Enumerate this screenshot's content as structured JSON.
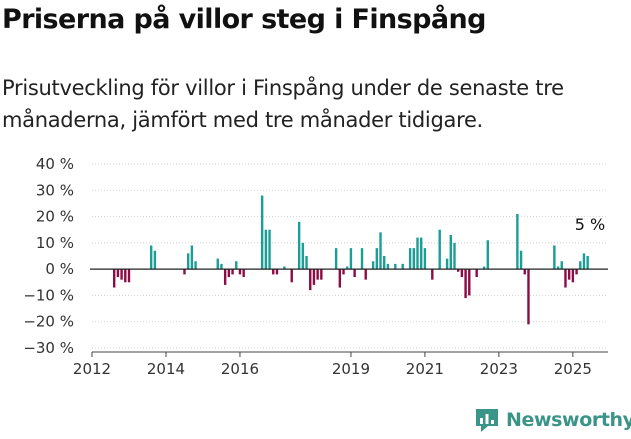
{
  "title": "Priserna på villor steg i Finspång",
  "subtitle": "Prisutveckling för villor i Finspång under de senaste tre månaderna, jämfört med tre månader tidigare.",
  "logo": {
    "text": "Newsworthy",
    "icon": "newsworthy-chart-logo-icon",
    "color": "#3a9487"
  },
  "colors": {
    "positive": "#1a9e96",
    "negative": "#8c0c46",
    "axis": "#444444",
    "grid": "#d0d0d0"
  },
  "chart_data": {
    "type": "bar",
    "title": "",
    "xlabel": "",
    "ylabel": "",
    "unit": "%",
    "ylim": [
      -30,
      40
    ],
    "yticks": [
      40,
      30,
      20,
      10,
      0,
      -10,
      -20,
      -30
    ],
    "ytick_labels": [
      "40 %",
      "30 %",
      "20 %",
      "10 %",
      "0 %",
      "−10 %",
      "−20 %",
      "−30 %"
    ],
    "xticks": [
      2012,
      2014,
      2016,
      2019,
      2021,
      2023,
      2025
    ],
    "xtick_labels": [
      "2012",
      "2014",
      "2016",
      "2019",
      "2021",
      "2023",
      "2025"
    ],
    "grid": true,
    "annotation": {
      "text": "5 %",
      "x": 2025.3,
      "y": 5
    },
    "x": [
      2012.6,
      2012.7,
      2012.8,
      2012.9,
      2013.0,
      2013.6,
      2013.7,
      2014.5,
      2014.6,
      2014.7,
      2014.8,
      2015.4,
      2015.5,
      2015.6,
      2015.7,
      2015.8,
      2015.9,
      2016.0,
      2016.1,
      2016.6,
      2016.7,
      2016.8,
      2016.9,
      2017.0,
      2017.2,
      2017.4,
      2017.6,
      2017.7,
      2017.8,
      2017.9,
      2018.0,
      2018.1,
      2018.2,
      2018.6,
      2018.7,
      2018.8,
      2018.9,
      2019.0,
      2019.1,
      2019.3,
      2019.4,
      2019.6,
      2019.7,
      2019.8,
      2019.9,
      2020.0,
      2020.2,
      2020.4,
      2020.6,
      2020.7,
      2020.8,
      2020.9,
      2021.0,
      2021.2,
      2021.4,
      2021.6,
      2021.7,
      2021.8,
      2021.9,
      2022.0,
      2022.1,
      2022.2,
      2022.4,
      2022.6,
      2022.7,
      2023.5,
      2023.6,
      2023.7,
      2023.8,
      2024.5,
      2024.6,
      2024.7,
      2024.8,
      2024.9,
      2025.0,
      2025.1,
      2025.2,
      2025.3,
      2025.4
    ],
    "values": [
      -7,
      -3,
      -4,
      -5,
      -5,
      9,
      7,
      -2,
      6,
      9,
      3,
      4,
      2,
      -6,
      -3,
      -2,
      3,
      -2,
      -3,
      28,
      15,
      15,
      -2,
      -2,
      1,
      -5,
      18,
      10,
      5,
      -8,
      -6,
      -4,
      -4,
      8,
      -7,
      -2,
      1,
      8,
      -3,
      8,
      -4,
      3,
      8,
      14,
      5,
      2,
      2,
      2,
      8,
      8,
      12,
      12,
      8,
      -4,
      15,
      4,
      13,
      10,
      -1,
      -3,
      -11,
      -10,
      -3,
      1,
      11,
      21,
      7,
      -2,
      -21,
      9,
      1,
      3,
      -7,
      -4,
      -5,
      -2,
      3,
      6,
      5
    ]
  }
}
